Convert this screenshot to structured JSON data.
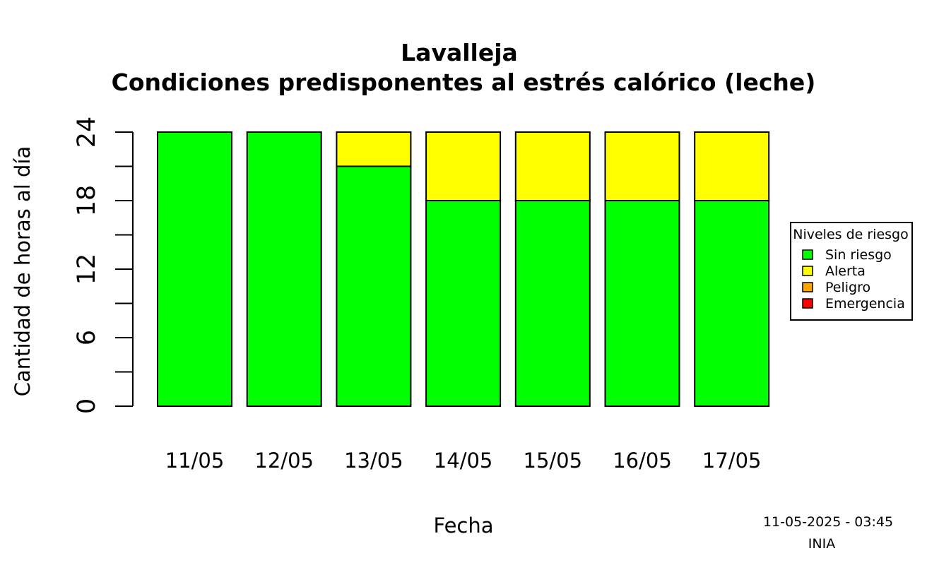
{
  "chart_data": {
    "type": "bar",
    "stacked": true,
    "title": "Lavalleja",
    "subtitle": "Condiciones predisponentes al estrés calórico (leche)",
    "xlabel": "Fecha",
    "ylabel": "Cantidad de horas al día",
    "ylim": [
      0,
      24
    ],
    "yticks": [
      "0",
      "6",
      "12",
      "18",
      "24"
    ],
    "categories": [
      "11/05",
      "12/05",
      "13/05",
      "14/05",
      "15/05",
      "16/05",
      "17/05"
    ],
    "series": [
      {
        "name": "Sin riesgo",
        "color": "#00ff00",
        "values": [
          24,
          24,
          21,
          18,
          18,
          18,
          18
        ]
      },
      {
        "name": "Alerta",
        "color": "#ffff00",
        "values": [
          0,
          0,
          3,
          6,
          6,
          6,
          6
        ]
      },
      {
        "name": "Peligro",
        "color": "#ffa500",
        "values": [
          0,
          0,
          0,
          0,
          0,
          0,
          0
        ]
      },
      {
        "name": "Emergencia",
        "color": "#ff0000",
        "values": [
          0,
          0,
          0,
          0,
          0,
          0,
          0
        ]
      }
    ],
    "legend": {
      "title": "Niveles de riesgo",
      "position": "right"
    },
    "grid": false
  },
  "footer": {
    "timestamp": "11-05-2025 - 03:45",
    "source": "INIA"
  }
}
